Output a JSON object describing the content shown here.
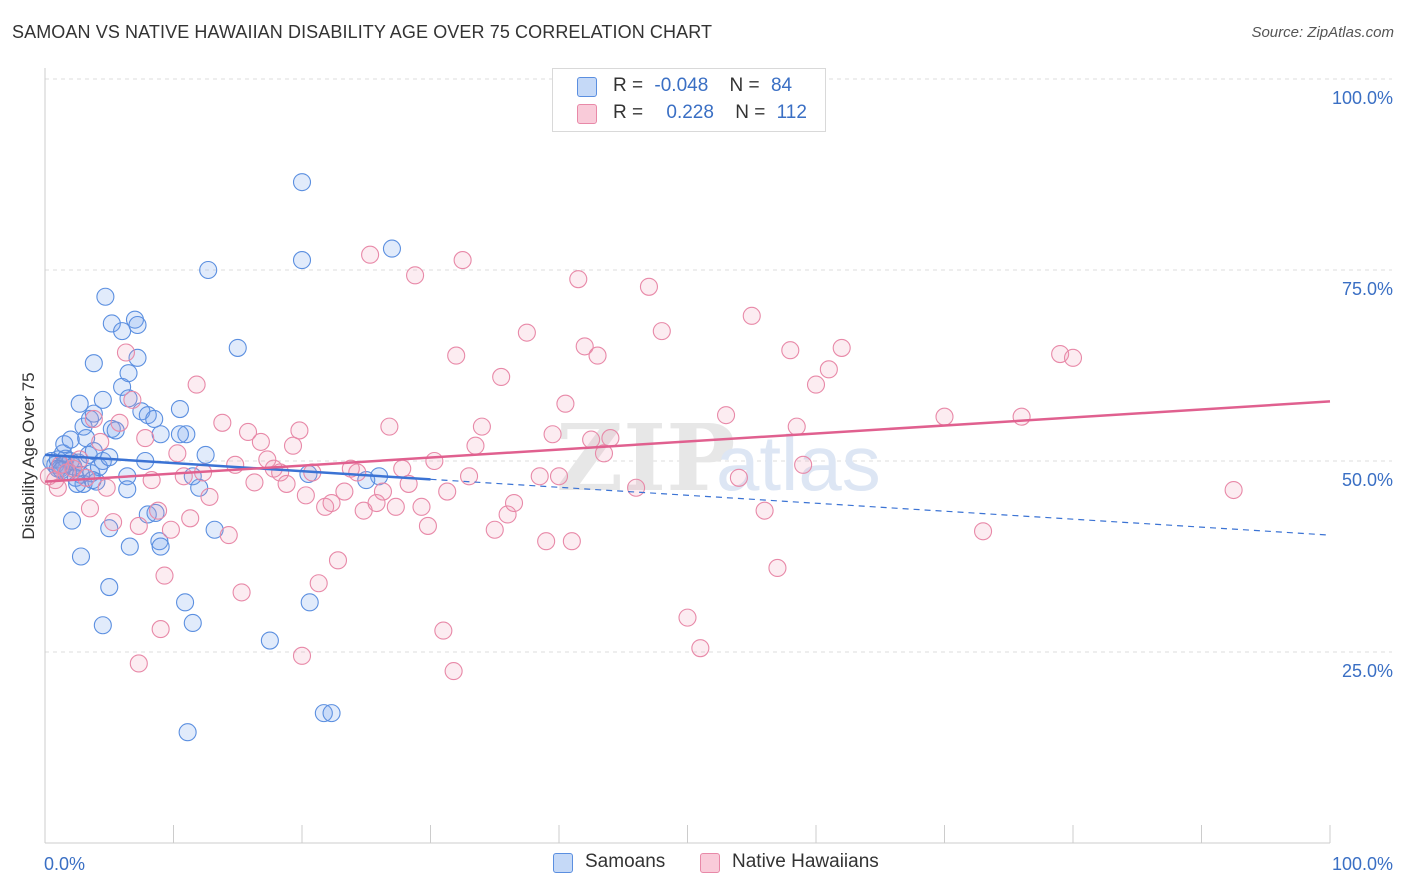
{
  "header": {
    "title": "SAMOAN VS NATIVE HAWAIIAN DISABILITY AGE OVER 75 CORRELATION CHART",
    "source": "Source: ZipAtlas.com"
  },
  "legend": {
    "rows": [
      {
        "r_label": "R =",
        "r_value": "-0.048",
        "n_label": "N =",
        "n_value": "84",
        "color": "#a9c8f4"
      },
      {
        "r_label": "R =",
        "r_value": "0.228",
        "n_label": "N =",
        "n_value": "112",
        "color": "#f7b8cc"
      }
    ]
  },
  "bottom_legend": [
    {
      "label": "Samoans",
      "color": "#a9c8f4"
    },
    {
      "label": "Native Hawaiians",
      "color": "#f7b8cc"
    }
  ],
  "watermark": {
    "zip": "ZIP",
    "atlas": "atlas"
  },
  "colors": {
    "samoan_fill": "rgba(120,165,235,0.22)",
    "samoan_stroke": "#5b8fe0",
    "samoan_line": "#3b73d4",
    "hawaiian_fill": "rgba(240,150,180,0.18)",
    "hawaiian_stroke": "#e889a8",
    "hawaiian_line": "#e0608f",
    "axis_text": "#3a6fc4",
    "grid": "#dddddd"
  },
  "chart_data": {
    "type": "scatter",
    "title": "SAMOAN VS NATIVE HAWAIIAN DISABILITY AGE OVER 75 CORRELATION CHART",
    "xlabel": "",
    "ylabel": "Disability Age Over 75",
    "xlim": [
      0,
      100
    ],
    "ylim": [
      0,
      100
    ],
    "x_tick_labels": [
      "0.0%",
      "100.0%"
    ],
    "y_tick_labels": [
      "25.0%",
      "50.0%",
      "75.0%",
      "100.0%"
    ],
    "y_ticks": [
      25,
      50,
      75,
      100
    ],
    "grid": true,
    "series": [
      {
        "name": "Samoans",
        "trend": {
          "x0": 0,
          "y0": 50.8,
          "x1": 30,
          "y1": 47.6,
          "dashed_to_x": 100,
          "dashed_to_y": 40.3
        },
        "points": [
          [
            0.5,
            50.0
          ],
          [
            0.8,
            49.5
          ],
          [
            1.0,
            50.2
          ],
          [
            1.2,
            49.0
          ],
          [
            1.4,
            51.0
          ],
          [
            1.6,
            50.3
          ],
          [
            1.8,
            48.6
          ],
          [
            2.0,
            50.0
          ],
          [
            2.2,
            49.3
          ],
          [
            2.4,
            47.8
          ],
          [
            2.6,
            49.8
          ],
          [
            2.8,
            48.2
          ],
          [
            3.0,
            47.0
          ],
          [
            3.2,
            53.0
          ],
          [
            3.4,
            50.8
          ],
          [
            3.6,
            48.4
          ],
          [
            3.8,
            51.3
          ],
          [
            4.0,
            47.3
          ],
          [
            4.2,
            49.2
          ],
          [
            4.5,
            50.0
          ],
          [
            1.5,
            52.2
          ],
          [
            2.0,
            52.8
          ],
          [
            3.0,
            54.5
          ],
          [
            3.5,
            55.5
          ],
          [
            3.8,
            56.2
          ],
          [
            5.2,
            54.2
          ],
          [
            5.5,
            54.0
          ],
          [
            6.0,
            59.7
          ],
          [
            6.5,
            58.2
          ],
          [
            7.2,
            63.5
          ],
          [
            6.5,
            61.5
          ],
          [
            3.8,
            62.8
          ],
          [
            4.5,
            58.0
          ],
          [
            2.7,
            57.5
          ],
          [
            7.5,
            56.5
          ],
          [
            8.0,
            56.0
          ],
          [
            8.5,
            55.5
          ],
          [
            9.0,
            53.5
          ],
          [
            10.5,
            56.8
          ],
          [
            11.0,
            53.5
          ],
          [
            11.5,
            48.0
          ],
          [
            12.0,
            46.5
          ],
          [
            12.5,
            50.8
          ],
          [
            10.5,
            53.5
          ],
          [
            7.8,
            50.0
          ],
          [
            6.4,
            48.0
          ],
          [
            6.4,
            46.3
          ],
          [
            5.2,
            68.0
          ],
          [
            6.0,
            67.0
          ],
          [
            7.0,
            68.5
          ],
          [
            7.2,
            67.8
          ],
          [
            4.7,
            71.5
          ],
          [
            12.7,
            75.0
          ],
          [
            15.0,
            64.8
          ],
          [
            20.0,
            86.5
          ],
          [
            20.5,
            48.3
          ],
          [
            26.0,
            48.0
          ],
          [
            27.0,
            77.8
          ],
          [
            25.0,
            47.5
          ],
          [
            1.5,
            49.5
          ],
          [
            2.1,
            42.2
          ],
          [
            2.8,
            37.5
          ],
          [
            5.0,
            41.2
          ],
          [
            6.6,
            38.8
          ],
          [
            8.0,
            43.0
          ],
          [
            8.6,
            43.2
          ],
          [
            8.9,
            39.5
          ],
          [
            9.0,
            38.8
          ],
          [
            5.0,
            33.5
          ],
          [
            4.5,
            28.5
          ],
          [
            10.9,
            31.5
          ],
          [
            11.5,
            28.8
          ],
          [
            13.2,
            41.0
          ],
          [
            17.5,
            26.5
          ],
          [
            20.6,
            31.5
          ],
          [
            21.7,
            17.0
          ],
          [
            22.3,
            17.0
          ],
          [
            11.1,
            14.5
          ],
          [
            2.5,
            47.0
          ],
          [
            3.7,
            47.5
          ],
          [
            20.0,
            76.3
          ],
          [
            1.0,
            49.0
          ],
          [
            1.3,
            48.8
          ],
          [
            5.0,
            50.5
          ]
        ]
      },
      {
        "name": "Native Hawaiians",
        "trend": {
          "x0": 0,
          "y0": 47.3,
          "x1": 100,
          "y1": 57.8
        },
        "points": [
          [
            0.3,
            48.0
          ],
          [
            0.8,
            47.5
          ],
          [
            1.2,
            49.5
          ],
          [
            1.7,
            48.5
          ],
          [
            2.2,
            49.0
          ],
          [
            2.7,
            50.2
          ],
          [
            3.2,
            47.8
          ],
          [
            3.8,
            55.5
          ],
          [
            4.3,
            52.5
          ],
          [
            4.8,
            46.5
          ],
          [
            5.3,
            42.0
          ],
          [
            5.8,
            55.0
          ],
          [
            6.3,
            64.2
          ],
          [
            6.8,
            58.0
          ],
          [
            7.3,
            41.5
          ],
          [
            7.8,
            53.0
          ],
          [
            8.3,
            47.5
          ],
          [
            8.8,
            43.5
          ],
          [
            9.3,
            35.0
          ],
          [
            9.8,
            41.0
          ],
          [
            10.3,
            51.0
          ],
          [
            10.8,
            48.0
          ],
          [
            11.3,
            42.5
          ],
          [
            11.8,
            60.0
          ],
          [
            12.3,
            48.5
          ],
          [
            12.8,
            45.3
          ],
          [
            13.8,
            55.0
          ],
          [
            14.3,
            40.3
          ],
          [
            14.8,
            49.5
          ],
          [
            15.3,
            32.8
          ],
          [
            15.8,
            53.8
          ],
          [
            16.3,
            47.2
          ],
          [
            16.8,
            52.5
          ],
          [
            17.3,
            50.2
          ],
          [
            17.8,
            49.0
          ],
          [
            18.3,
            48.5
          ],
          [
            18.8,
            47.0
          ],
          [
            19.3,
            52.0
          ],
          [
            19.8,
            54.0
          ],
          [
            20.3,
            45.5
          ],
          [
            20.8,
            48.5
          ],
          [
            21.3,
            34.0
          ],
          [
            21.8,
            44.0
          ],
          [
            22.3,
            44.5
          ],
          [
            22.8,
            37.0
          ],
          [
            23.3,
            46.0
          ],
          [
            23.8,
            49.0
          ],
          [
            24.3,
            48.5
          ],
          [
            24.8,
            43.5
          ],
          [
            25.3,
            77.0
          ],
          [
            25.8,
            44.5
          ],
          [
            26.3,
            46.0
          ],
          [
            26.8,
            54.5
          ],
          [
            27.3,
            44.0
          ],
          [
            27.8,
            49.0
          ],
          [
            28.3,
            47.0
          ],
          [
            28.8,
            74.3
          ],
          [
            29.3,
            44.0
          ],
          [
            29.8,
            41.5
          ],
          [
            30.3,
            50.0
          ],
          [
            31.3,
            46.0
          ],
          [
            32.0,
            63.8
          ],
          [
            32.5,
            76.3
          ],
          [
            33.0,
            48.0
          ],
          [
            33.5,
            52.0
          ],
          [
            34.0,
            54.5
          ],
          [
            35.0,
            41.0
          ],
          [
            35.5,
            61.0
          ],
          [
            36.0,
            43.0
          ],
          [
            36.5,
            44.5
          ],
          [
            37.5,
            66.8
          ],
          [
            38.5,
            48.0
          ],
          [
            39.0,
            39.5
          ],
          [
            39.5,
            53.5
          ],
          [
            40.0,
            48.0
          ],
          [
            40.5,
            57.5
          ],
          [
            41.0,
            39.5
          ],
          [
            41.5,
            73.8
          ],
          [
            42.0,
            65.0
          ],
          [
            42.5,
            52.8
          ],
          [
            43.0,
            63.8
          ],
          [
            43.5,
            51.0
          ],
          [
            44.0,
            53.0
          ],
          [
            46.0,
            46.5
          ],
          [
            47.0,
            72.8
          ],
          [
            48.0,
            67.0
          ],
          [
            50.0,
            29.5
          ],
          [
            51.0,
            25.5
          ],
          [
            53.0,
            56.0
          ],
          [
            54.0,
            47.8
          ],
          [
            55.0,
            69.0
          ],
          [
            56.0,
            43.5
          ],
          [
            57.0,
            36.0
          ],
          [
            58.0,
            64.5
          ],
          [
            58.5,
            54.5
          ],
          [
            59.0,
            49.5
          ],
          [
            60.0,
            60.0
          ],
          [
            61.0,
            62.0
          ],
          [
            62.0,
            64.8
          ],
          [
            70.0,
            55.8
          ],
          [
            73.0,
            40.8
          ],
          [
            76.0,
            55.8
          ],
          [
            79.0,
            64.0
          ],
          [
            80.0,
            63.5
          ],
          [
            92.5,
            46.2
          ],
          [
            1.0,
            46.5
          ],
          [
            3.5,
            43.8
          ],
          [
            9.0,
            28.0
          ],
          [
            7.3,
            23.5
          ],
          [
            31.8,
            22.5
          ],
          [
            31.0,
            27.8
          ],
          [
            20.0,
            24.5
          ]
        ]
      }
    ]
  }
}
